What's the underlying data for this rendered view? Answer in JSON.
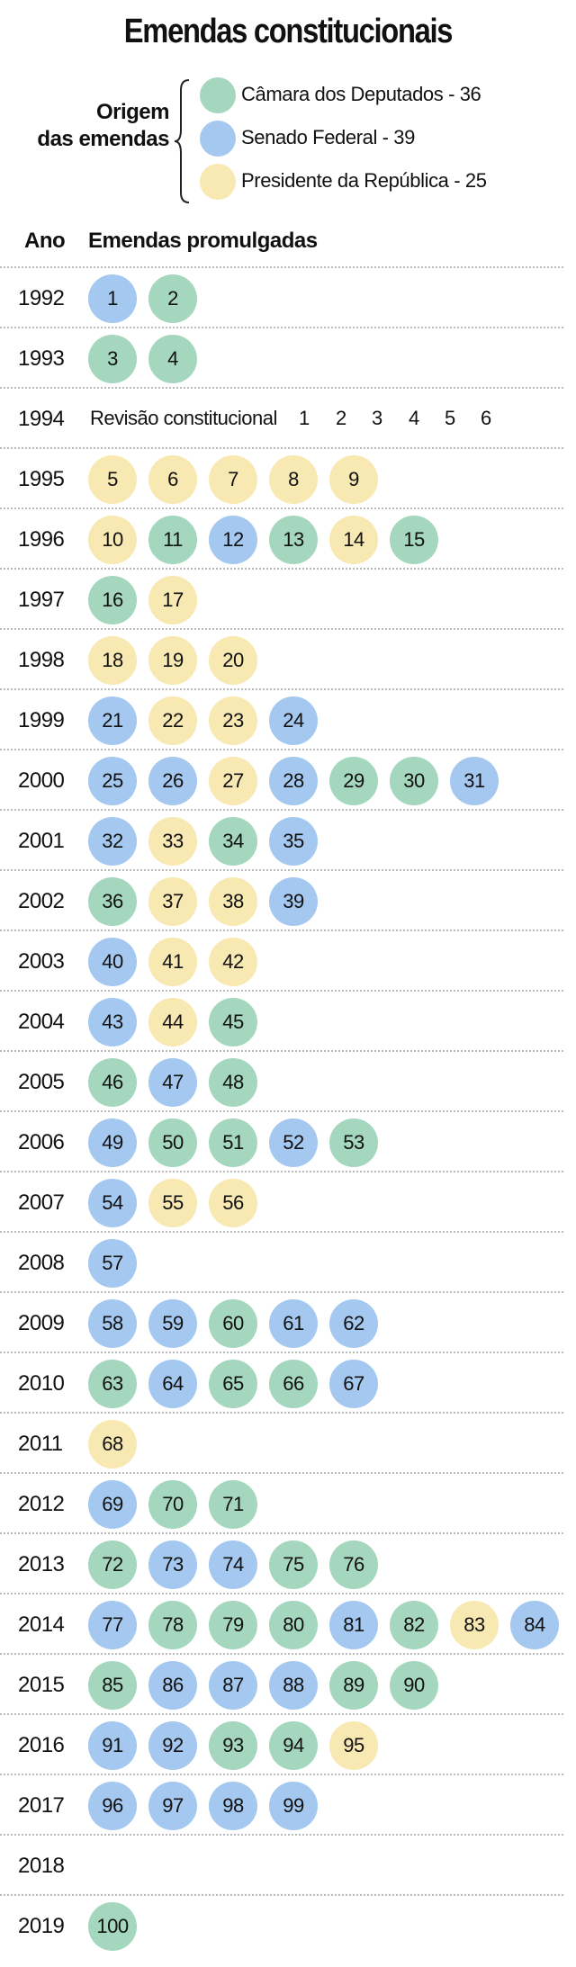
{
  "title": "Emendas constitucionais",
  "legend": {
    "label_line1": "Origem",
    "label_line2": "das emendas",
    "items": [
      {
        "label": "Câmara dos Deputados - 36",
        "color": "#a5d7bf"
      },
      {
        "label": "Senado Federal - 39",
        "color": "#a4c8f0"
      },
      {
        "label": "Presidente da República - 25",
        "color": "#f8e8b2"
      }
    ]
  },
  "headers": {
    "year": "Ano",
    "amendments": "Emendas promulgadas"
  },
  "colors": {
    "C": "#a5d7bf",
    "S": "#a4c8f0",
    "P": "#f8e8b2",
    "dots": "#b9b9b9"
  },
  "revision": {
    "label": "Revisão constitucional",
    "numbers": [
      "1",
      "2",
      "3",
      "4",
      "5",
      "6"
    ]
  },
  "chart_data": {
    "type": "table",
    "origin_codes": {
      "C": "Câmara dos Deputados",
      "S": "Senado Federal",
      "P": "Presidente da República"
    },
    "rows": [
      {
        "year": "1992",
        "amendments": [
          {
            "n": "1",
            "o": "S"
          },
          {
            "n": "2",
            "o": "C"
          }
        ]
      },
      {
        "year": "1993",
        "amendments": [
          {
            "n": "3",
            "o": "C"
          },
          {
            "n": "4",
            "o": "C"
          }
        ]
      },
      {
        "year": "1994",
        "revision": true,
        "amendments": []
      },
      {
        "year": "1995",
        "amendments": [
          {
            "n": "5",
            "o": "P"
          },
          {
            "n": "6",
            "o": "P"
          },
          {
            "n": "7",
            "o": "P"
          },
          {
            "n": "8",
            "o": "P"
          },
          {
            "n": "9",
            "o": "P"
          }
        ]
      },
      {
        "year": "1996",
        "amendments": [
          {
            "n": "10",
            "o": "P"
          },
          {
            "n": "11",
            "o": "C"
          },
          {
            "n": "12",
            "o": "S"
          },
          {
            "n": "13",
            "o": "C"
          },
          {
            "n": "14",
            "o": "P"
          },
          {
            "n": "15",
            "o": "C"
          }
        ]
      },
      {
        "year": "1997",
        "amendments": [
          {
            "n": "16",
            "o": "C"
          },
          {
            "n": "17",
            "o": "P"
          }
        ]
      },
      {
        "year": "1998",
        "amendments": [
          {
            "n": "18",
            "o": "P"
          },
          {
            "n": "19",
            "o": "P"
          },
          {
            "n": "20",
            "o": "P"
          }
        ]
      },
      {
        "year": "1999",
        "amendments": [
          {
            "n": "21",
            "o": "S"
          },
          {
            "n": "22",
            "o": "P"
          },
          {
            "n": "23",
            "o": "P"
          },
          {
            "n": "24",
            "o": "S"
          }
        ]
      },
      {
        "year": "2000",
        "amendments": [
          {
            "n": "25",
            "o": "S"
          },
          {
            "n": "26",
            "o": "S"
          },
          {
            "n": "27",
            "o": "P"
          },
          {
            "n": "28",
            "o": "S"
          },
          {
            "n": "29",
            "o": "C"
          },
          {
            "n": "30",
            "o": "C"
          },
          {
            "n": "31",
            "o": "S"
          }
        ]
      },
      {
        "year": "2001",
        "amendments": [
          {
            "n": "32",
            "o": "S"
          },
          {
            "n": "33",
            "o": "P"
          },
          {
            "n": "34",
            "o": "C"
          },
          {
            "n": "35",
            "o": "S"
          }
        ]
      },
      {
        "year": "2002",
        "amendments": [
          {
            "n": "36",
            "o": "C"
          },
          {
            "n": "37",
            "o": "P"
          },
          {
            "n": "38",
            "o": "P"
          },
          {
            "n": "39",
            "o": "S"
          }
        ]
      },
      {
        "year": "2003",
        "amendments": [
          {
            "n": "40",
            "o": "S"
          },
          {
            "n": "41",
            "o": "P"
          },
          {
            "n": "42",
            "o": "P"
          }
        ]
      },
      {
        "year": "2004",
        "amendments": [
          {
            "n": "43",
            "o": "S"
          },
          {
            "n": "44",
            "o": "P"
          },
          {
            "n": "45",
            "o": "C"
          }
        ]
      },
      {
        "year": "2005",
        "amendments": [
          {
            "n": "46",
            "o": "C"
          },
          {
            "n": "47",
            "o": "S"
          },
          {
            "n": "48",
            "o": "C"
          }
        ]
      },
      {
        "year": "2006",
        "amendments": [
          {
            "n": "49",
            "o": "S"
          },
          {
            "n": "50",
            "o": "C"
          },
          {
            "n": "51",
            "o": "C"
          },
          {
            "n": "52",
            "o": "S"
          },
          {
            "n": "53",
            "o": "C"
          }
        ]
      },
      {
        "year": "2007",
        "amendments": [
          {
            "n": "54",
            "o": "S"
          },
          {
            "n": "55",
            "o": "P"
          },
          {
            "n": "56",
            "o": "P"
          }
        ]
      },
      {
        "year": "2008",
        "amendments": [
          {
            "n": "57",
            "o": "S"
          }
        ]
      },
      {
        "year": "2009",
        "amendments": [
          {
            "n": "58",
            "o": "S"
          },
          {
            "n": "59",
            "o": "S"
          },
          {
            "n": "60",
            "o": "C"
          },
          {
            "n": "61",
            "o": "S"
          },
          {
            "n": "62",
            "o": "S"
          }
        ]
      },
      {
        "year": "2010",
        "amendments": [
          {
            "n": "63",
            "o": "C"
          },
          {
            "n": "64",
            "o": "S"
          },
          {
            "n": "65",
            "o": "C"
          },
          {
            "n": "66",
            "o": "C"
          },
          {
            "n": "67",
            "o": "S"
          }
        ]
      },
      {
        "year": "2011",
        "amendments": [
          {
            "n": "68",
            "o": "P"
          }
        ]
      },
      {
        "year": "2012",
        "amendments": [
          {
            "n": "69",
            "o": "S"
          },
          {
            "n": "70",
            "o": "C"
          },
          {
            "n": "71",
            "o": "C"
          }
        ]
      },
      {
        "year": "2013",
        "amendments": [
          {
            "n": "72",
            "o": "C"
          },
          {
            "n": "73",
            "o": "S"
          },
          {
            "n": "74",
            "o": "S"
          },
          {
            "n": "75",
            "o": "C"
          },
          {
            "n": "76",
            "o": "C"
          }
        ]
      },
      {
        "year": "2014",
        "amendments": [
          {
            "n": "77",
            "o": "S"
          },
          {
            "n": "78",
            "o": "C"
          },
          {
            "n": "79",
            "o": "C"
          },
          {
            "n": "80",
            "o": "C"
          },
          {
            "n": "81",
            "o": "S"
          },
          {
            "n": "82",
            "o": "C"
          },
          {
            "n": "83",
            "o": "P"
          },
          {
            "n": "84",
            "o": "S"
          }
        ]
      },
      {
        "year": "2015",
        "amendments": [
          {
            "n": "85",
            "o": "C"
          },
          {
            "n": "86",
            "o": "S"
          },
          {
            "n": "87",
            "o": "S"
          },
          {
            "n": "88",
            "o": "S"
          },
          {
            "n": "89",
            "o": "C"
          },
          {
            "n": "90",
            "o": "C"
          }
        ]
      },
      {
        "year": "2016",
        "amendments": [
          {
            "n": "91",
            "o": "S"
          },
          {
            "n": "92",
            "o": "S"
          },
          {
            "n": "93",
            "o": "C"
          },
          {
            "n": "94",
            "o": "C"
          },
          {
            "n": "95",
            "o": "P"
          }
        ]
      },
      {
        "year": "2017",
        "amendments": [
          {
            "n": "96",
            "o": "S"
          },
          {
            "n": "97",
            "o": "S"
          },
          {
            "n": "98",
            "o": "S"
          },
          {
            "n": "99",
            "o": "S"
          }
        ]
      },
      {
        "year": "2018",
        "amendments": []
      },
      {
        "year": "2019",
        "amendments": [
          {
            "n": "100",
            "o": "C"
          }
        ]
      }
    ]
  }
}
